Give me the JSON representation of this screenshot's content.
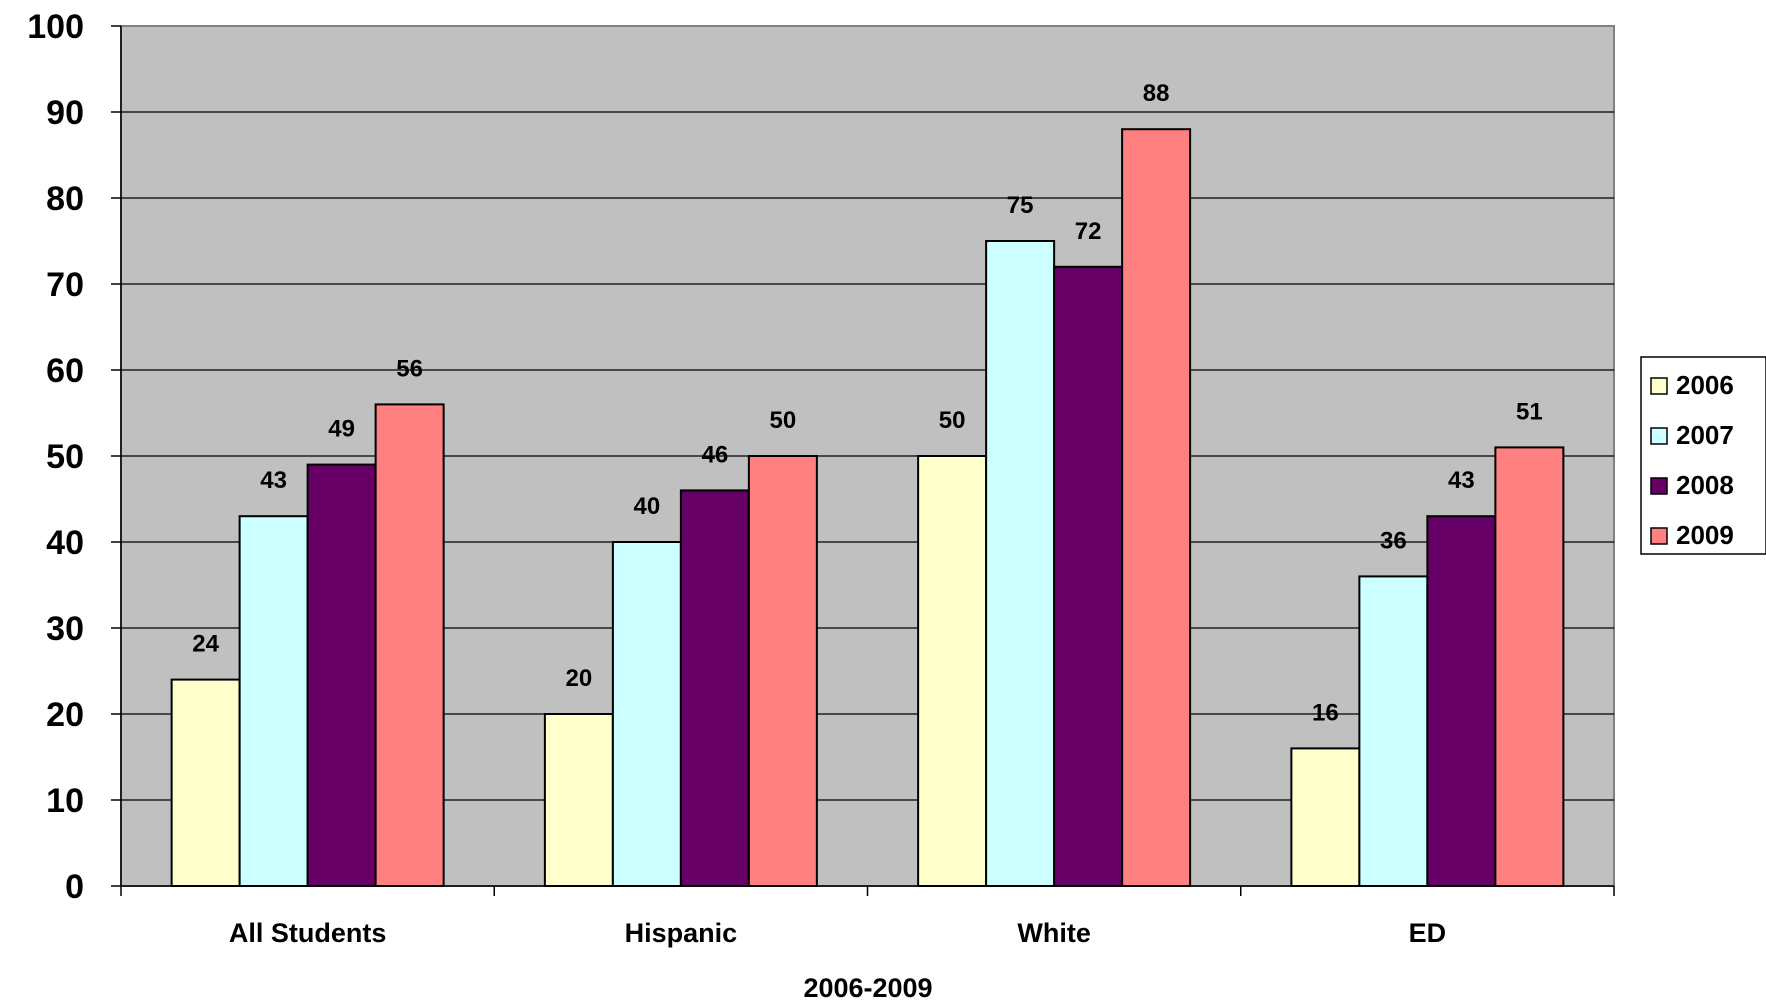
{
  "chart_data": {
    "type": "bar",
    "categories": [
      "All Students",
      "Hispanic",
      "White",
      "ED"
    ],
    "series": [
      {
        "name": "2006",
        "values": [
          24,
          20,
          50,
          16
        ],
        "color": "#FFFFCC"
      },
      {
        "name": "2007",
        "values": [
          43,
          40,
          75,
          36
        ],
        "color": "#CCFFFF"
      },
      {
        "name": "2008",
        "values": [
          49,
          46,
          72,
          43
        ],
        "color": "#660066"
      },
      {
        "name": "2009",
        "values": [
          56,
          50,
          88,
          51
        ],
        "color": "#FF8080"
      }
    ],
    "xlabel": "2006-2009",
    "ylabel": "",
    "ylim": [
      0,
      100
    ],
    "yticks": [
      0,
      10,
      20,
      30,
      40,
      50,
      60,
      70,
      80,
      90,
      100
    ],
    "grid": true,
    "legend": "right",
    "plot_background": "#C0C0C0"
  }
}
